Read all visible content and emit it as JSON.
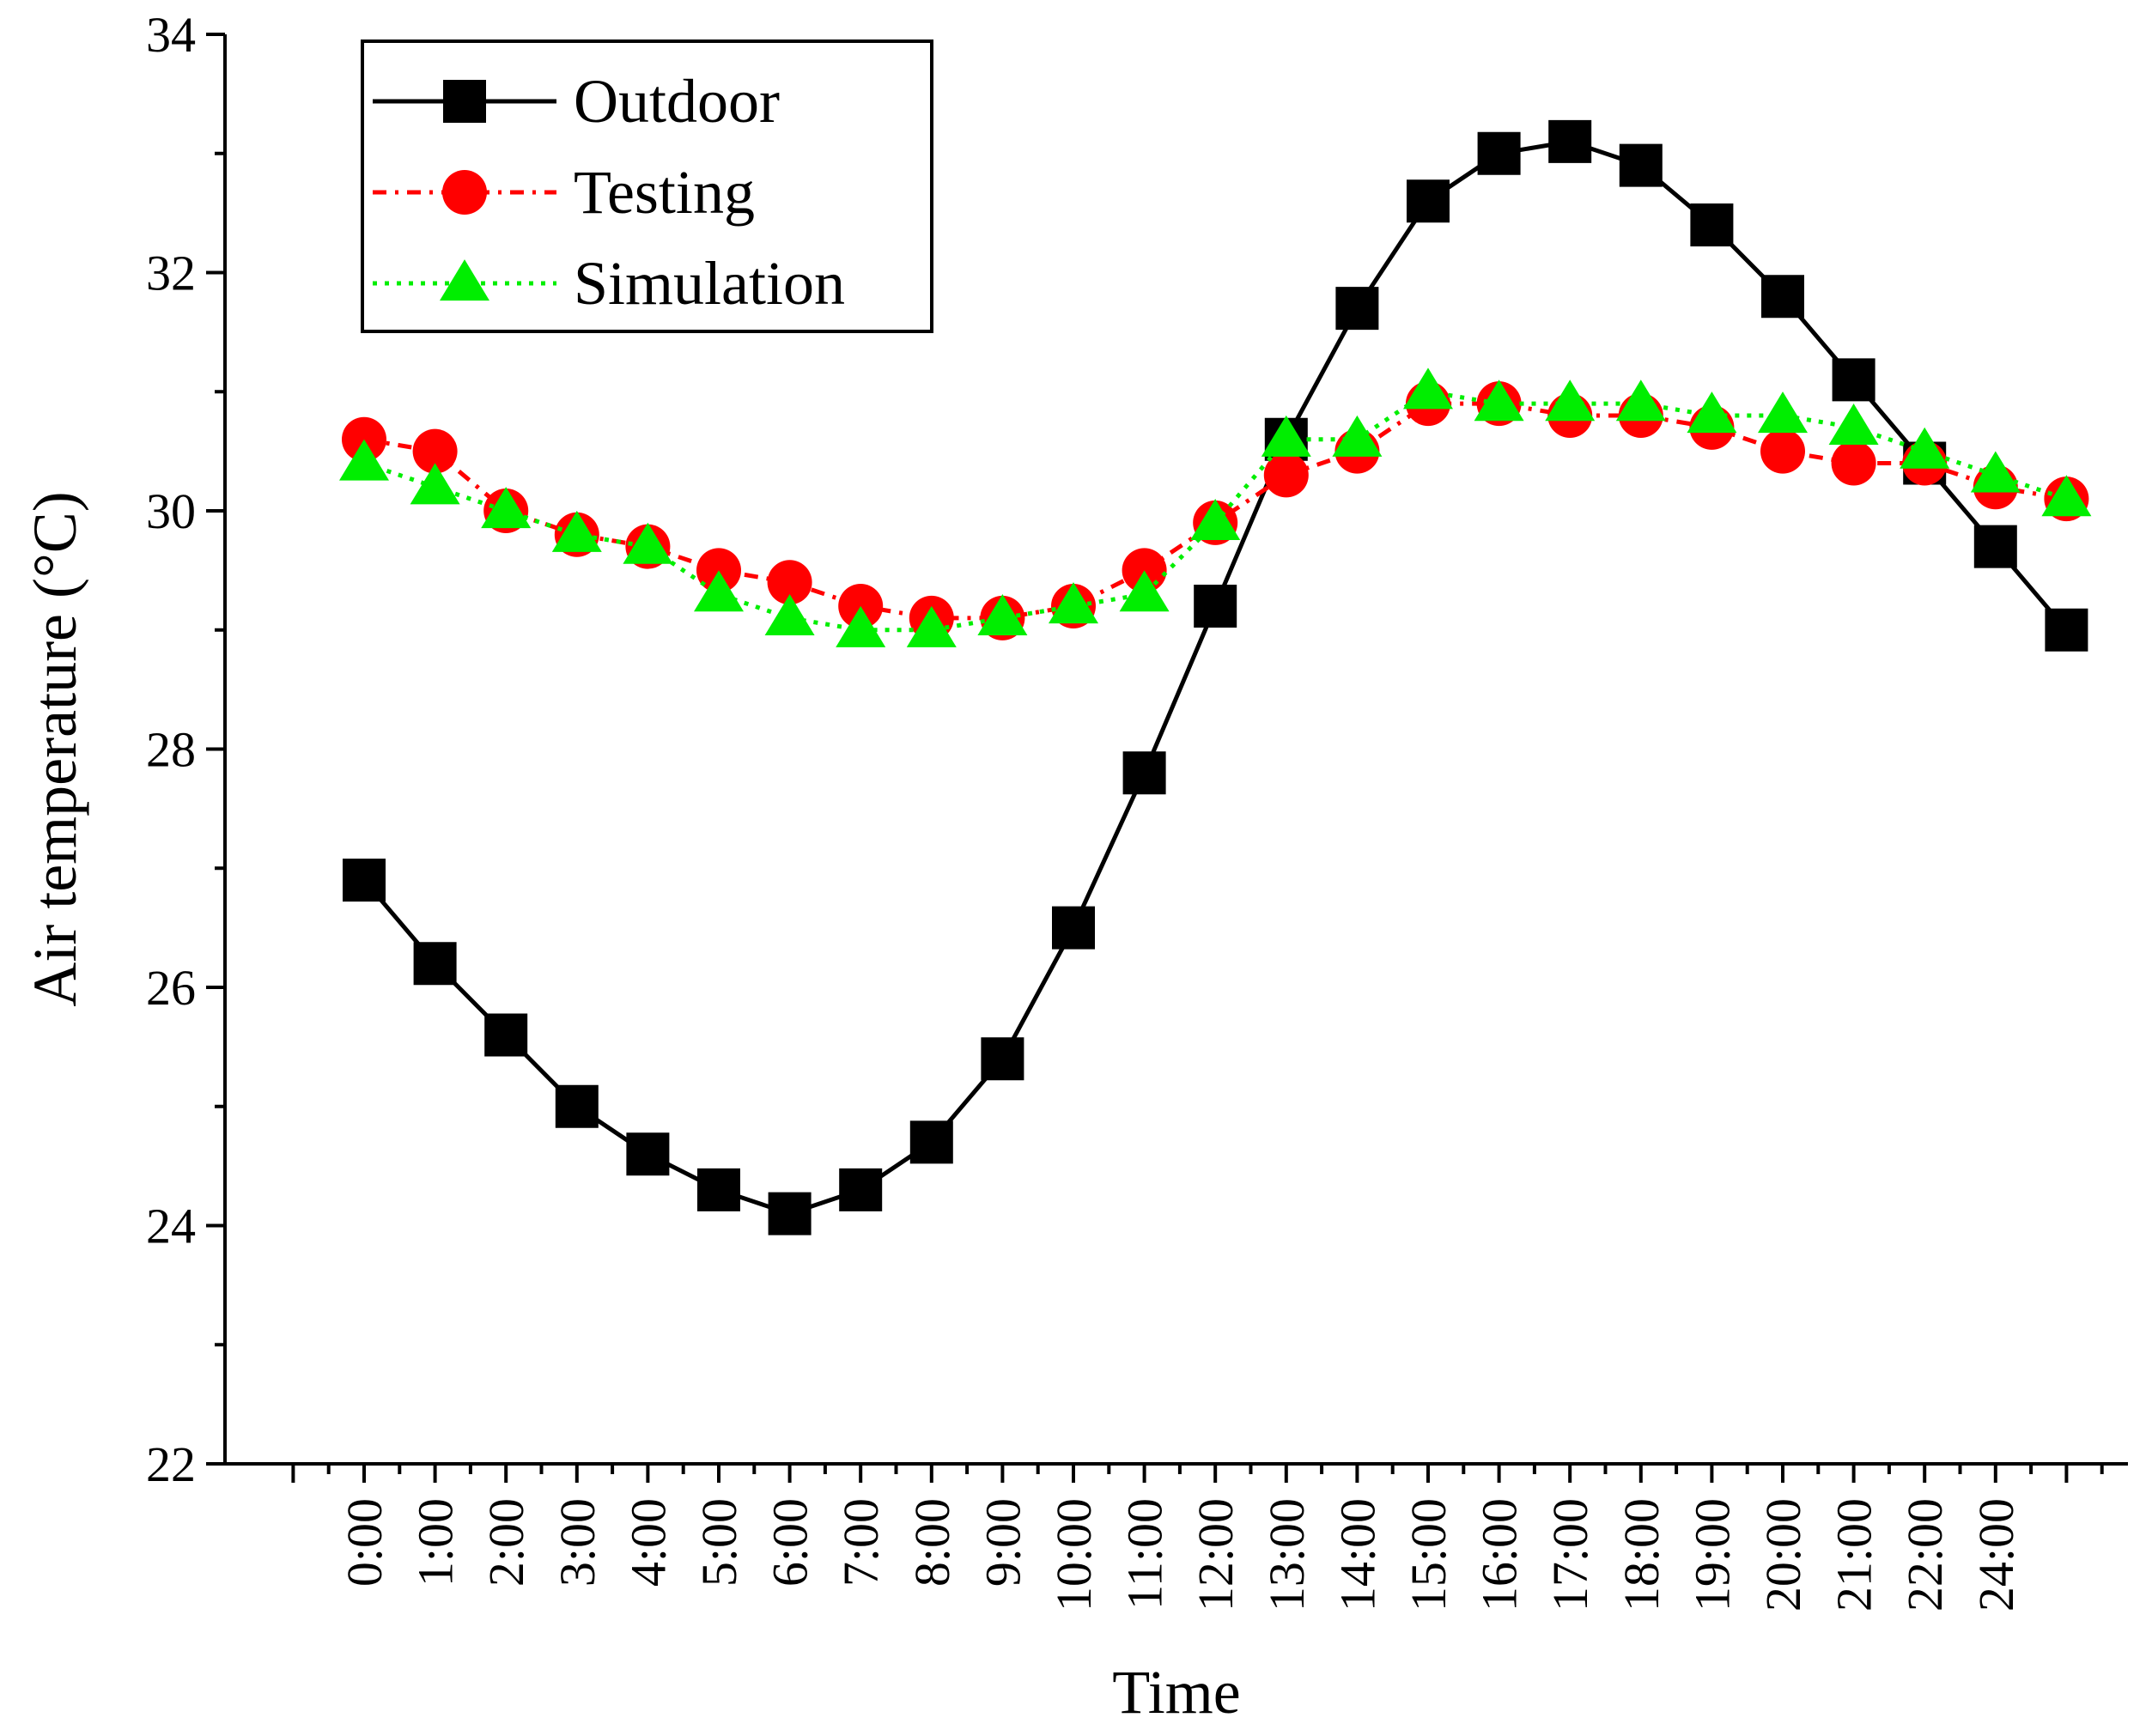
{
  "chart_data": {
    "type": "line",
    "title": "",
    "xlabel": "Time",
    "ylabel": "Air temperature (°C)",
    "ylim": [
      22,
      34
    ],
    "yticks": [
      22,
      24,
      26,
      28,
      30,
      32,
      34
    ],
    "categories": [
      "0:00",
      "1:00",
      "2:00",
      "3:00",
      "4:00",
      "5:00",
      "6:00",
      "7:00",
      "8:00",
      "9:00",
      "10:00",
      "11:00",
      "12:00",
      "13:00",
      "14:00",
      "15:00",
      "16:00",
      "17:00",
      "18:00",
      "19:00",
      "20:00",
      "21:00",
      "22:00",
      "24:00",
      ""
    ],
    "legend_position": "top-left",
    "series": [
      {
        "name": "Outdoor",
        "color": "#000000",
        "marker": "square",
        "line": "solid",
        "values": [
          26.9,
          26.2,
          25.6,
          25.0,
          24.6,
          24.3,
          24.1,
          24.3,
          24.7,
          25.4,
          26.5,
          27.8,
          29.2,
          30.6,
          31.7,
          32.6,
          33.0,
          33.1,
          32.9,
          32.4,
          31.8,
          31.1,
          30.4,
          29.7,
          29.0
        ]
      },
      {
        "name": "Testing",
        "color": "#ff0000",
        "marker": "circle",
        "line": "dash-dot",
        "values": [
          30.6,
          30.5,
          30.0,
          29.8,
          29.7,
          29.5,
          29.4,
          29.2,
          29.1,
          29.1,
          29.2,
          29.5,
          29.9,
          30.3,
          30.5,
          30.9,
          30.9,
          30.8,
          30.8,
          30.7,
          30.5,
          30.4,
          30.4,
          30.2,
          30.1
        ]
      },
      {
        "name": "Simulation",
        "color": "#00ee00",
        "marker": "triangle",
        "line": "dotted",
        "values": [
          30.4,
          30.2,
          30.0,
          29.8,
          29.7,
          29.3,
          29.1,
          29.0,
          29.0,
          29.1,
          29.2,
          29.3,
          29.9,
          30.6,
          30.6,
          31.0,
          30.9,
          30.9,
          30.9,
          30.8,
          30.8,
          30.7,
          30.5,
          30.3,
          30.1
        ]
      }
    ]
  }
}
